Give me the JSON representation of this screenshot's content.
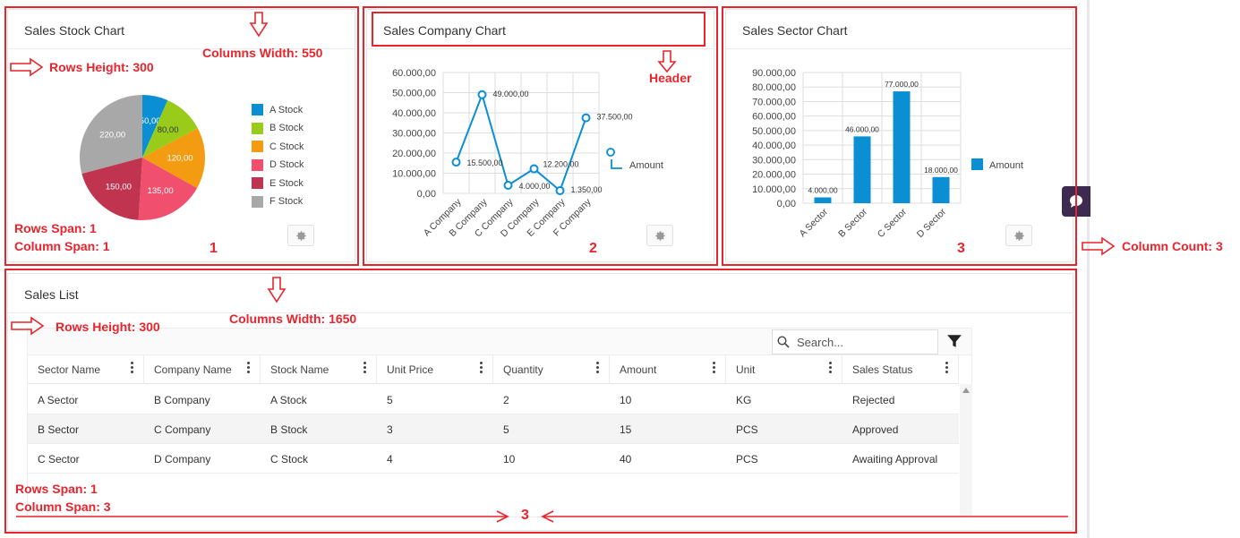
{
  "cards": {
    "stock": {
      "title": "Sales Stock Chart",
      "legend": [
        "A Stock",
        "B Stock",
        "C Stock",
        "D Stock",
        "E Stock",
        "F Stock"
      ]
    },
    "company": {
      "title": "Sales Company Chart",
      "legend": "Amount"
    },
    "sector": {
      "title": "Sales Sector Chart",
      "legend": "Amount"
    },
    "list": {
      "title": "Sales List"
    }
  },
  "chart_data": [
    {
      "type": "pie",
      "title": "Sales Stock Chart",
      "categories": [
        "A Stock",
        "B Stock",
        "C Stock",
        "D Stock",
        "E Stock",
        "F Stock"
      ],
      "values": [
        50,
        80,
        120,
        135,
        150,
        220
      ],
      "value_labels": [
        "50,00",
        "80,00",
        "120,00",
        "135,00",
        "150,00",
        "220,00"
      ],
      "colors": [
        "#0a8fd4",
        "#99cc1a",
        "#f39c12",
        "#f0506e",
        "#c0344f",
        "#a8a8a8"
      ],
      "legend_position": "right"
    },
    {
      "type": "line",
      "title": "Sales Company Chart",
      "categories": [
        "A Company",
        "B Company",
        "C Company",
        "D Company",
        "E Company",
        "F Company"
      ],
      "series": [
        {
          "name": "Amount",
          "values": [
            15500,
            49000,
            4000,
            12200,
            1350,
            37500
          ]
        }
      ],
      "value_labels": [
        "15.500,00",
        "49.000,00",
        "4.000,00",
        "12.200,00",
        "1.350,00",
        "37.500,00"
      ],
      "yticks": [
        "0,00",
        "10.000,00",
        "20.000,00",
        "30.000,00",
        "40.000,00",
        "50.000,00",
        "60.000,00"
      ],
      "ylim": [
        0,
        60000
      ],
      "grid": true,
      "legend_position": "right",
      "color": "#0a8fd4"
    },
    {
      "type": "bar",
      "title": "Sales Sector Chart",
      "categories": [
        "A Sector",
        "B Sector",
        "C Sector",
        "D Sector"
      ],
      "series": [
        {
          "name": "Amount",
          "values": [
            4000,
            46000,
            77000,
            18000
          ]
        }
      ],
      "value_labels": [
        "4.000,00",
        "46.000,00",
        "77.000,00",
        "18.000,00"
      ],
      "yticks": [
        "0,00",
        "10.000,00",
        "20.000,00",
        "30.000,00",
        "40.000,00",
        "50.000,00",
        "60.000,00",
        "70.000,00",
        "80.000,00",
        "90.000,00"
      ],
      "ylim": [
        0,
        90000
      ],
      "grid": true,
      "legend_position": "right",
      "color": "#0a8fd4"
    }
  ],
  "table": {
    "search_placeholder": "Search...",
    "columns": [
      "Sector Name",
      "Company Name",
      "Stock Name",
      "Unit Price",
      "Quantity",
      "Amount",
      "Unit",
      "Sales Status"
    ],
    "rows": [
      [
        "A Sector",
        "B Company",
        "A Stock",
        "5",
        "2",
        "10",
        "KG",
        "Rejected"
      ],
      [
        "B Sector",
        "C Company",
        "B Stock",
        "3",
        "5",
        "15",
        "PCS",
        "Approved"
      ],
      [
        "C Sector",
        "D Company",
        "C Stock",
        "4",
        "10",
        "40",
        "PCS",
        "Awaiting Approval"
      ]
    ]
  },
  "annotations": {
    "rows_height_1": "Rows Height: 300",
    "columns_width_1": "Columns Width: 550",
    "header": "Header",
    "rows_span_1": "Rows Span: 1",
    "column_span_1": "Column Span: 1",
    "num_1": "1",
    "num_2": "2",
    "num_3": "3",
    "column_count": "Column Count: 3",
    "rows_height_2": "Rows Height: 300",
    "columns_width_2": "Columns Width: 1650",
    "rows_span_2": "Rows Span: 1",
    "column_span_2": "Column Span: 3",
    "num_bottom": "3"
  },
  "colors": {
    "annotation": "#e8242c",
    "accent": "#0a8fd4"
  }
}
